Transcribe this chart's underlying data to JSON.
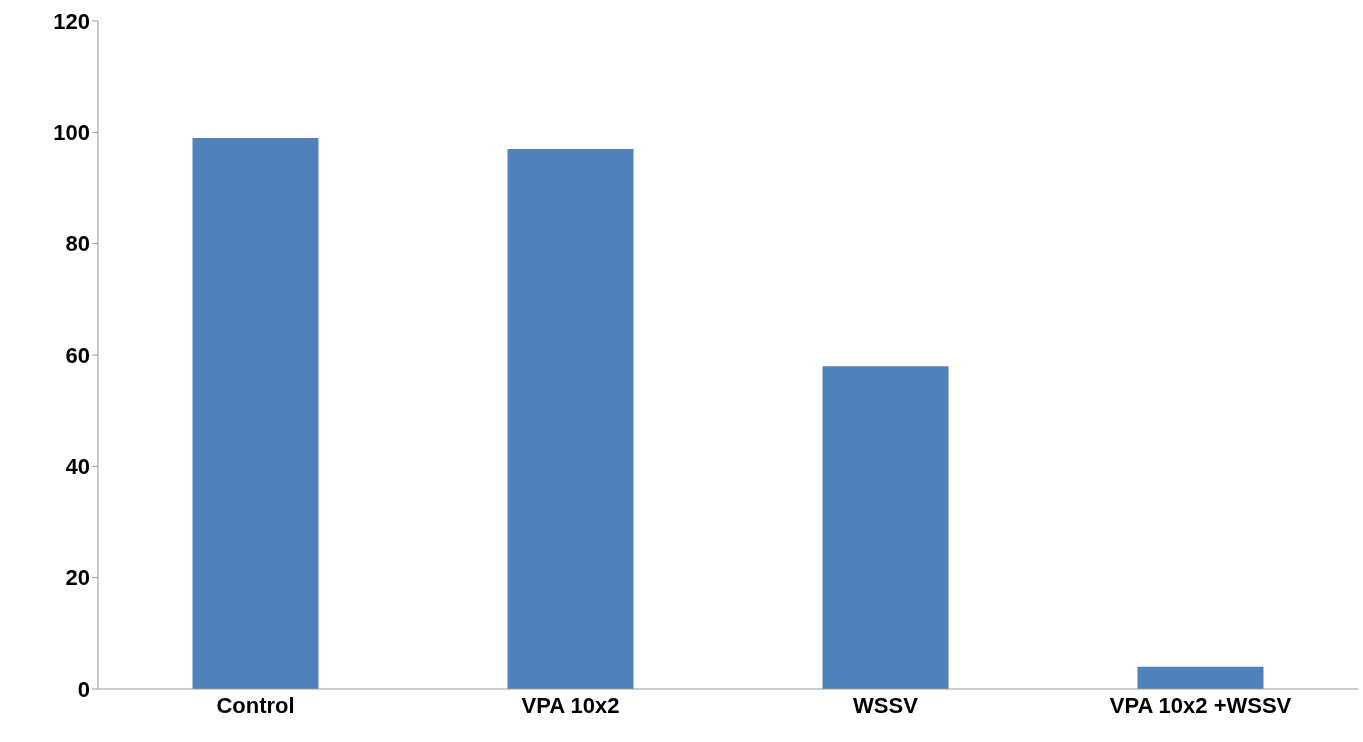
{
  "chart_data": {
    "type": "bar",
    "categories": [
      "Control",
      "VPA 10x2",
      "WSSV",
      "VPA 10x2 +WSSV"
    ],
    "values": [
      99,
      97,
      58,
      4
    ],
    "color": "#4f81bd",
    "ylim": [
      0,
      120
    ],
    "yticks": [
      0,
      20,
      40,
      60,
      80,
      100,
      120
    ],
    "grid": false
  }
}
